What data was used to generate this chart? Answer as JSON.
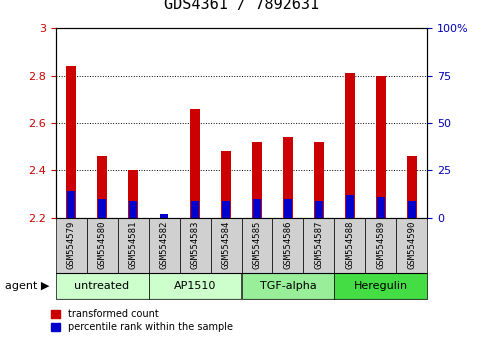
{
  "title": "GDS4361 / 7892631",
  "samples": [
    "GSM554579",
    "GSM554580",
    "GSM554581",
    "GSM554582",
    "GSM554583",
    "GSM554584",
    "GSM554585",
    "GSM554586",
    "GSM554587",
    "GSM554588",
    "GSM554589",
    "GSM554590"
  ],
  "red_values": [
    2.84,
    2.46,
    2.4,
    2.2,
    2.66,
    2.48,
    2.52,
    2.54,
    2.52,
    2.81,
    2.8,
    2.46
  ],
  "blue_pct": [
    14,
    10,
    9,
    2,
    9,
    9,
    10,
    10,
    9,
    12,
    11,
    9
  ],
  "ylim_left": [
    2.2,
    3.0
  ],
  "ylim_right": [
    0,
    100
  ],
  "yticks_left": [
    2.2,
    2.4,
    2.6,
    2.8,
    3.0
  ],
  "ytick_labels_left": [
    "2.2",
    "2.4",
    "2.6",
    "2.8",
    "3"
  ],
  "yticks_right": [
    0,
    25,
    50,
    75,
    100
  ],
  "ytick_labels_right": [
    "0",
    "25",
    "50",
    "75",
    "100%"
  ],
  "agent_groups": [
    {
      "label": "untreated",
      "start": 0,
      "end": 3,
      "color": "#ccffcc"
    },
    {
      "label": "AP1510",
      "start": 3,
      "end": 6,
      "color": "#ccffcc"
    },
    {
      "label": "TGF-alpha",
      "start": 6,
      "end": 9,
      "color": "#99ee99"
    },
    {
      "label": "Heregulin",
      "start": 9,
      "end": 12,
      "color": "#44dd44"
    }
  ],
  "bar_width": 0.35,
  "red_color": "#cc0000",
  "blue_color": "#0000cc",
  "grid_color": "#000000",
  "tick_color_left": "#cc0000",
  "tick_color_right": "#0000bb",
  "legend_red": "transformed count",
  "legend_blue": "percentile rank within the sample",
  "bg_sample_color": "#d0d0d0",
  "title_fontsize": 11,
  "tick_fontsize": 8,
  "sample_fontsize": 6.5,
  "agent_fontsize": 8,
  "legend_fontsize": 7
}
